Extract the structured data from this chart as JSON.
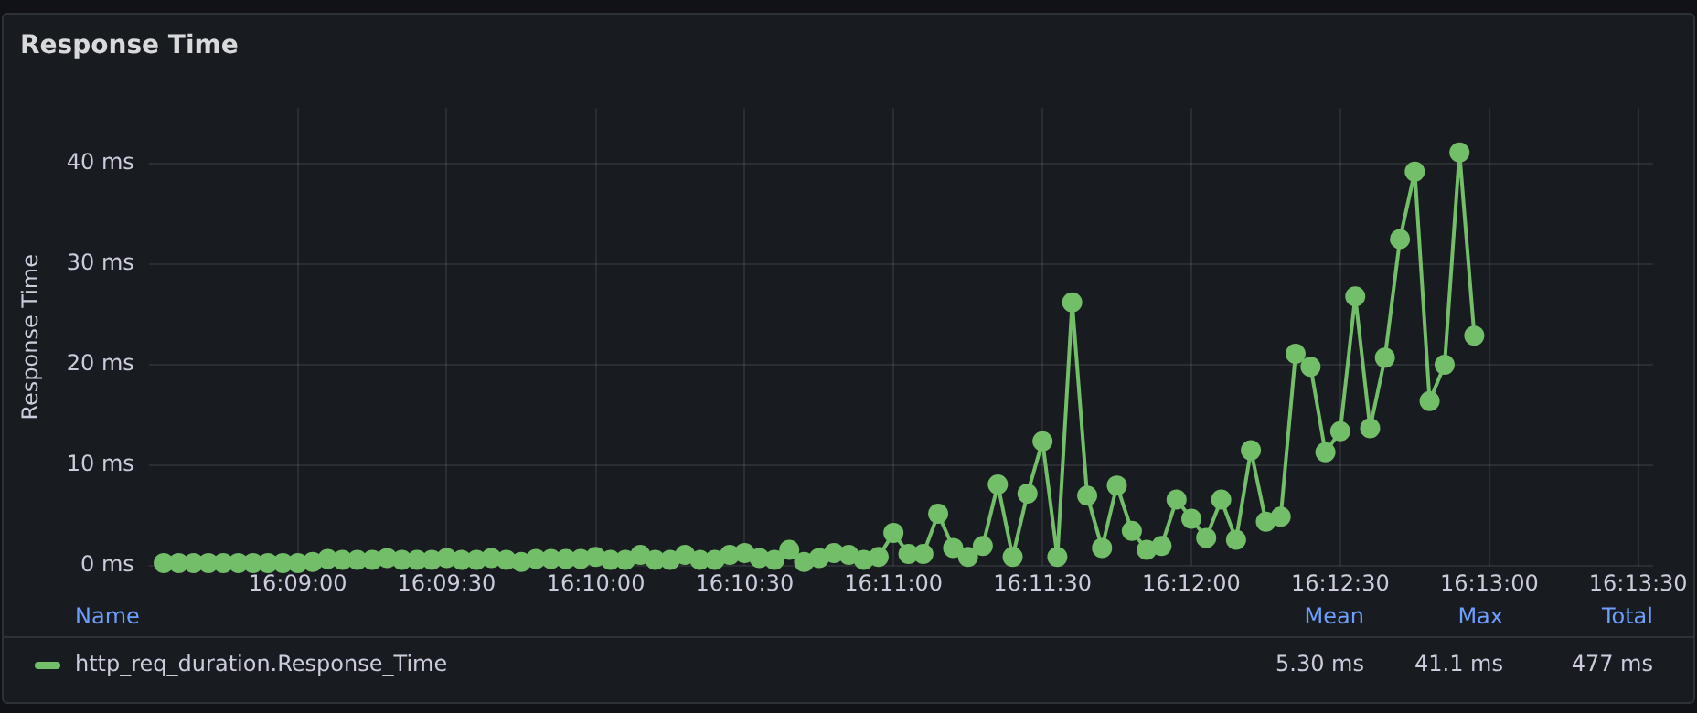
{
  "chart_data": {
    "type": "line",
    "title": "Response Time",
    "ylabel": "Response Time",
    "x": [
      16.1425,
      16.14333,
      16.14417,
      16.145,
      16.14583,
      16.14667,
      16.1475,
      16.14833,
      16.14917,
      16.15,
      16.15083,
      16.15167,
      16.1525,
      16.15333,
      16.15417,
      16.155,
      16.15583,
      16.15667,
      16.1575,
      16.15833,
      16.15917,
      16.16,
      16.16083,
      16.16167,
      16.1625,
      16.16333,
      16.16417,
      16.165,
      16.16583,
      16.16667,
      16.1675,
      16.16833,
      16.16917,
      16.17,
      16.17083,
      16.17167,
      16.1725,
      16.17333,
      16.17417,
      16.175,
      16.17583,
      16.17667,
      16.1775,
      16.17833,
      16.17917,
      16.18,
      16.18083,
      16.18167,
      16.1825,
      16.18333,
      16.18417,
      16.185,
      16.18583,
      16.18667,
      16.1875,
      16.18833,
      16.18917,
      16.19,
      16.19083,
      16.19167,
      16.1925,
      16.19333,
      16.19417,
      16.195,
      16.19583,
      16.19667,
      16.1975,
      16.19833,
      16.19917,
      16.2,
      16.20083,
      16.20167,
      16.2025,
      16.20333,
      16.20417,
      16.205,
      16.20583,
      16.20667,
      16.2075,
      16.20833,
      16.20917,
      16.21,
      16.21083,
      16.21167,
      16.2125,
      16.21333,
      16.21417,
      16.215,
      16.21583
    ],
    "series": [
      {
        "name": "http_req_duration.Response_Time",
        "color": "#73bf69",
        "values": [
          0.3,
          0.3,
          0.3,
          0.3,
          0.3,
          0.3,
          0.3,
          0.3,
          0.3,
          0.3,
          0.4,
          0.7,
          0.6,
          0.6,
          0.6,
          0.8,
          0.6,
          0.6,
          0.6,
          0.8,
          0.6,
          0.6,
          0.8,
          0.6,
          0.4,
          0.7,
          0.7,
          0.7,
          0.7,
          0.9,
          0.6,
          0.6,
          1.1,
          0.6,
          0.6,
          1.1,
          0.6,
          0.6,
          1.1,
          1.3,
          0.8,
          0.6,
          1.6,
          0.4,
          0.8,
          1.3,
          1.1,
          0.6,
          0.9,
          3.3,
          1.2,
          1.2,
          5.2,
          1.8,
          0.9,
          2.0,
          8.1,
          0.9,
          7.2,
          12.4,
          0.9,
          26.2,
          7.0,
          1.8,
          8.0,
          3.5,
          1.6,
          2.0,
          6.6,
          4.7,
          2.8,
          6.6,
          2.6,
          11.5,
          4.4,
          4.9,
          21.1,
          19.8,
          11.3,
          13.4,
          26.8,
          13.7,
          20.7,
          32.5,
          39.2,
          16.4,
          20.0,
          41.1,
          22.9
        ]
      }
    ],
    "xlim": [
      16.14167,
      16.22583
    ],
    "xticks": [
      {
        "value": 16.15,
        "label": "16:09:00"
      },
      {
        "value": 16.15833,
        "label": "16:09:30"
      },
      {
        "value": 16.16667,
        "label": "16:10:00"
      },
      {
        "value": 16.175,
        "label": "16:10:30"
      },
      {
        "value": 16.18333,
        "label": "16:11:00"
      },
      {
        "value": 16.19167,
        "label": "16:11:30"
      },
      {
        "value": 16.2,
        "label": "16:12:00"
      },
      {
        "value": 16.20833,
        "label": "16:12:30"
      },
      {
        "value": 16.21667,
        "label": "16:13:00"
      },
      {
        "value": 16.225,
        "label": "16:13:30"
      }
    ],
    "ylim": [
      0,
      45.5
    ],
    "yticks": [
      {
        "value": 0,
        "label": "0 ms"
      },
      {
        "value": 10,
        "label": "10 ms"
      },
      {
        "value": 20,
        "label": "20 ms"
      },
      {
        "value": 30,
        "label": "30 ms"
      },
      {
        "value": 40,
        "label": "40 ms"
      }
    ],
    "grid": true,
    "legend": "bottom",
    "marker": "circle",
    "line_style": "solid",
    "annotations": [
      "Name",
      "Mean",
      "Max",
      "Total",
      "5.30 ms",
      "41.1 ms",
      "477 ms"
    ]
  }
}
